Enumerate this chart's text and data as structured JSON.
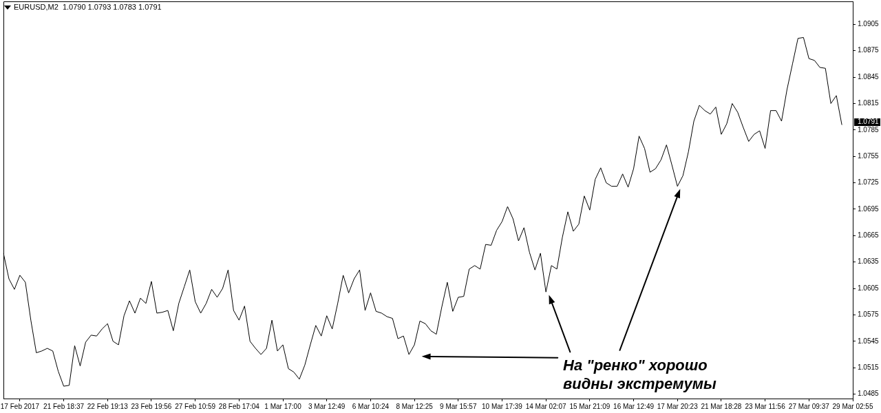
{
  "chart_data": {
    "type": "line",
    "title": "EURUSD,M2  1.0790 1.0793 1.0783 1.0791",
    "categories": [
      null,
      null,
      null,
      "17 Feb 2017",
      null,
      null,
      null,
      null,
      null,
      null,
      null,
      "21 Feb 18:37",
      null,
      null,
      null,
      null,
      null,
      null,
      null,
      "22 Feb 19:13",
      null,
      null,
      null,
      null,
      null,
      null,
      null,
      "23 Feb 19:56",
      null,
      null,
      null,
      null,
      null,
      null,
      null,
      "27 Feb 10:59",
      null,
      null,
      null,
      null,
      null,
      null,
      null,
      "28 Feb 17:04",
      null,
      null,
      null,
      null,
      null,
      null,
      null,
      "1 Mar 17:00",
      null,
      null,
      null,
      null,
      null,
      null,
      null,
      "3 Mar 12:49",
      null,
      null,
      null,
      null,
      null,
      null,
      null,
      "6 Mar 10:24",
      null,
      null,
      null,
      null,
      null,
      null,
      null,
      "8 Mar 12:25",
      null,
      null,
      null,
      null,
      null,
      null,
      null,
      "9 Mar 15:57",
      null,
      null,
      null,
      null,
      null,
      null,
      null,
      "10 Mar 17:39",
      null,
      null,
      null,
      null,
      null,
      null,
      null,
      "14 Mar 02:07",
      null,
      null,
      null,
      null,
      null,
      null,
      null,
      "15 Mar 21:09",
      null,
      null,
      null,
      null,
      null,
      null,
      null,
      "16 Mar 12:49",
      null,
      null,
      null,
      null,
      null,
      null,
      null,
      "17 Mar 20:23",
      null,
      null,
      null,
      null,
      null,
      null,
      null,
      "21 Mar 18:28",
      null,
      null,
      null,
      null,
      null,
      null,
      null,
      "23 Mar 11:56",
      null,
      null,
      null,
      null,
      null,
      null,
      null,
      "27 Mar 09:37",
      null,
      null,
      null,
      null,
      null,
      null,
      null,
      "29 Mar 02:55"
    ],
    "series": [
      {
        "color": "#000000",
        "values": [
          1.0645,
          1.0616,
          1.0604,
          1.062,
          1.0612,
          1.0569,
          1.0532,
          1.0534,
          1.0537,
          1.0534,
          1.0511,
          1.0494,
          1.0495,
          1.054,
          1.0517,
          1.0544,
          1.0552,
          1.0551,
          1.0559,
          1.0565,
          1.0545,
          1.0541,
          1.0574,
          1.0591,
          1.0577,
          1.0594,
          1.0588,
          1.0613,
          1.0577,
          1.0578,
          1.058,
          1.0557,
          1.0588,
          1.0607,
          1.0626,
          1.059,
          1.0577,
          1.0588,
          1.0604,
          1.0595,
          1.0605,
          1.0626,
          1.058,
          1.0569,
          1.0585,
          1.0545,
          1.0537,
          1.053,
          1.0537,
          1.0569,
          1.0534,
          1.0541,
          1.0514,
          1.051,
          1.0502,
          1.0518,
          1.0541,
          1.0563,
          1.0551,
          1.0574,
          1.0559,
          1.0588,
          1.062,
          1.06,
          1.0616,
          1.0626,
          1.058,
          1.06,
          1.0579,
          1.0577,
          1.0573,
          1.0571,
          1.0548,
          1.0551,
          1.053,
          1.0541,
          1.0568,
          1.0565,
          1.0557,
          1.0553,
          1.0584,
          1.0612,
          1.0579,
          1.0595,
          1.0596,
          1.0627,
          1.0631,
          1.0627,
          1.0655,
          1.0654,
          1.0671,
          1.0681,
          1.0698,
          1.0684,
          1.0659,
          1.0674,
          1.0646,
          1.0626,
          1.0645,
          1.0601,
          1.0631,
          1.0627,
          1.0663,
          1.0692,
          1.067,
          1.0678,
          1.071,
          1.0694,
          1.0729,
          1.0742,
          1.0725,
          1.0721,
          1.0721,
          1.0735,
          1.072,
          1.0741,
          1.0778,
          1.0764,
          1.0737,
          1.0741,
          1.0751,
          1.0768,
          1.0745,
          1.0721,
          1.0733,
          1.076,
          1.0795,
          1.0813,
          1.0807,
          1.0803,
          1.0811,
          1.078,
          1.0792,
          1.0815,
          1.0805,
          1.0788,
          1.0772,
          1.078,
          1.0784,
          1.0764,
          1.0807,
          1.0807,
          1.0795,
          1.0831,
          1.086,
          1.0889,
          1.089,
          1.0866,
          1.0864,
          1.0856,
          1.0855,
          1.0815,
          1.0824,
          1.0791,
          null,
          null
        ]
      }
    ],
    "ylim": [
      1.048,
      1.0931
    ],
    "yticks": [
      1.0485,
      1.0515,
      1.0545,
      1.0575,
      1.0605,
      1.0635,
      1.0665,
      1.0695,
      1.0725,
      1.0755,
      1.0785,
      1.0815,
      1.0845,
      1.0875,
      1.0905
    ],
    "annotations": [
      "На \"ренко\" хорошо видны экстремумы",
      "1.0791"
    ],
    "grid": false,
    "legend": false,
    "marker": "none",
    "line_style": "solid"
  }
}
